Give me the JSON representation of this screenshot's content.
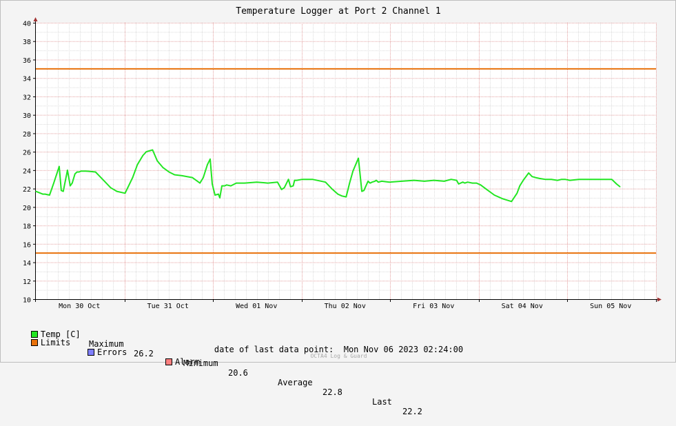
{
  "colors": {
    "temp": "#22e622",
    "limits": "#e8710a",
    "errors": "#7f7fff",
    "alarm": "#ff7f7f",
    "grid_minor": "#dcdcdc",
    "grid_major": "#e4a0a0",
    "axis": "#000000",
    "arrow": "#a03030"
  },
  "legend": {
    "temp_label": "Temp [C]",
    "limits_label": "Limits",
    "errors_label": "Errors",
    "alarm_label": "Alarm",
    "max_label": "Maximum",
    "max_value": "26.2",
    "min_label": "Minimum",
    "min_value": "20.6",
    "avg_label": "Average",
    "avg_value": "22.8",
    "last_label": "Last",
    "last_value": "22.2"
  },
  "footer": {
    "label": "date of last data point:",
    "value": "Mon Nov 06 2023 02:24:00"
  },
  "watermark": "OCTA4 Log & Guard",
  "chart_data": {
    "type": "line",
    "title": "Temperature Logger at Port 2 Channel 1",
    "xlabel": "",
    "ylabel": "",
    "ylim": [
      10,
      40
    ],
    "yticks": [
      10,
      12,
      14,
      16,
      18,
      20,
      22,
      24,
      26,
      28,
      30,
      32,
      34,
      36,
      38,
      40
    ],
    "xlim": [
      0,
      7.0
    ],
    "x_unit": "days since Mon 30 Oct 00:00",
    "xtick_labels": [
      "Mon 30 Oct",
      "Tue 31 Oct",
      "Wed 01 Nov",
      "Thu 02 Nov",
      "Fri 03 Nov",
      "Sat 04 Nov",
      "Sun 05 Nov"
    ],
    "grid": true,
    "limits": [
      {
        "name": "upper limit",
        "value": 35
      },
      {
        "name": "lower limit",
        "value": 15
      }
    ],
    "series": [
      {
        "name": "Temp [C]",
        "x": [
          0.0,
          0.078,
          0.105,
          0.155,
          0.202,
          0.264,
          0.287,
          0.31,
          0.357,
          0.388,
          0.411,
          0.442,
          0.465,
          0.488,
          0.512,
          0.566,
          0.674,
          0.775,
          0.845,
          0.915,
          1.008,
          1.093,
          1.147,
          1.209,
          1.248,
          1.318,
          1.372,
          1.434,
          1.504,
          1.566,
          1.651,
          1.767,
          1.853,
          1.891,
          1.938,
          1.969,
          1.992,
          2.023,
          2.062,
          2.078,
          2.101,
          2.132,
          2.155,
          2.202,
          2.264,
          2.357,
          2.496,
          2.62,
          2.729,
          2.775,
          2.806,
          2.853,
          2.876,
          2.907,
          2.922,
          2.946,
          3.008,
          3.124,
          3.271,
          3.341,
          3.411,
          3.457,
          3.504,
          3.543,
          3.581,
          3.643,
          3.682,
          3.705,
          3.752,
          3.775,
          3.798,
          3.829,
          3.845,
          3.868,
          3.907,
          3.992,
          4.132,
          4.271,
          4.388,
          4.496,
          4.612,
          4.69,
          4.752,
          4.775,
          4.822,
          4.845,
          4.876,
          4.93,
          4.977,
          5.023,
          5.078,
          5.178,
          5.271,
          5.372,
          5.434,
          5.465,
          5.504,
          5.566,
          5.605,
          5.643,
          5.689,
          5.752,
          5.822,
          5.891,
          5.938,
          5.977,
          6.031,
          6.132,
          6.271,
          6.411,
          6.504,
          6.558,
          6.597
        ],
        "values": [
          21.7,
          21.4,
          21.4,
          21.3,
          22.6,
          24.4,
          21.8,
          21.7,
          24.0,
          22.3,
          22.6,
          23.6,
          23.8,
          23.8,
          23.9,
          23.9,
          23.8,
          22.8,
          22.1,
          21.7,
          21.5,
          23.2,
          24.6,
          25.6,
          26.0,
          26.2,
          25.0,
          24.3,
          23.8,
          23.5,
          23.4,
          23.2,
          22.6,
          23.2,
          24.6,
          25.2,
          22.5,
          21.3,
          21.4,
          21.0,
          22.3,
          22.3,
          22.4,
          22.3,
          22.6,
          22.6,
          22.7,
          22.6,
          22.7,
          21.9,
          22.1,
          23.0,
          22.2,
          22.3,
          22.9,
          22.9,
          23.0,
          23.0,
          22.7,
          22.0,
          21.4,
          21.2,
          21.1,
          22.6,
          23.9,
          25.3,
          21.7,
          21.8,
          22.8,
          22.6,
          22.7,
          22.8,
          22.9,
          22.7,
          22.8,
          22.7,
          22.8,
          22.9,
          22.8,
          22.9,
          22.8,
          23.0,
          22.9,
          22.5,
          22.7,
          22.6,
          22.7,
          22.6,
          22.6,
          22.4,
          22.0,
          21.3,
          20.9,
          20.6,
          21.5,
          22.3,
          22.9,
          23.7,
          23.3,
          23.2,
          23.1,
          23.0,
          23.0,
          22.9,
          23.0,
          23.0,
          22.9,
          23.0,
          23.0,
          23.0,
          23.0,
          22.5,
          22.2
        ]
      }
    ]
  }
}
